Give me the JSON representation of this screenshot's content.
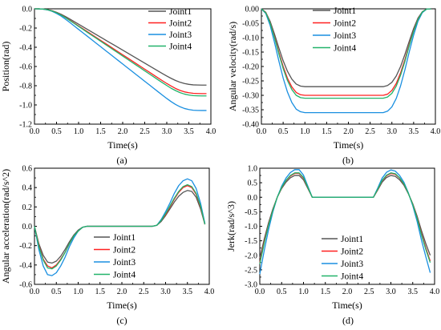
{
  "colors": {
    "Joint1": "#555555",
    "Joint2": "#ff2020",
    "Joint3": "#1a8fe0",
    "Joint4": "#22b36a"
  },
  "chart_data": [
    {
      "type": "line",
      "panel_label": "(a)",
      "xlabel": "Time(s)",
      "ylabel": "Position(rad)",
      "xlim": [
        0.0,
        4.0
      ],
      "ylim": [
        -1.2,
        0.0
      ],
      "xticks": [
        "0.0",
        "0.5",
        "1.0",
        "1.5",
        "2.0",
        "2.5",
        "3.0",
        "3.5",
        "4.0"
      ],
      "yticks": [
        "0.0",
        "-0.2",
        "-0.4",
        "-0.6",
        "-0.8",
        "-1.0",
        "-1.2"
      ],
      "legend_position": "top-right",
      "x": [
        0,
        0.1,
        0.2,
        0.3,
        0.4,
        0.5,
        0.6,
        0.7,
        0.8,
        0.9,
        1.0,
        1.1,
        1.2,
        1.3,
        1.4,
        1.5,
        1.6,
        1.7,
        1.8,
        1.9,
        2.0,
        2.1,
        2.2,
        2.3,
        2.4,
        2.5,
        2.6,
        2.7,
        2.8,
        2.9,
        3.0,
        3.1,
        3.2,
        3.3,
        3.4,
        3.5,
        3.6,
        3.7,
        3.8,
        3.9
      ],
      "series": [
        {
          "name": "Joint1",
          "values": [
            0.0,
            -0.0004,
            -0.0028,
            -0.009,
            -0.02,
            -0.036,
            -0.056,
            -0.08,
            -0.106,
            -0.133,
            -0.16,
            -0.187,
            -0.214,
            -0.241,
            -0.268,
            -0.295,
            -0.322,
            -0.349,
            -0.376,
            -0.403,
            -0.43,
            -0.457,
            -0.484,
            -0.511,
            -0.538,
            -0.565,
            -0.592,
            -0.619,
            -0.646,
            -0.673,
            -0.699,
            -0.724,
            -0.746,
            -0.764,
            -0.777,
            -0.786,
            -0.791,
            -0.793,
            -0.794,
            -0.794
          ]
        },
        {
          "name": "Joint2",
          "values": [
            0.0,
            -0.0004,
            -0.0031,
            -0.01,
            -0.022,
            -0.04,
            -0.062,
            -0.089,
            -0.118,
            -0.148,
            -0.178,
            -0.208,
            -0.238,
            -0.268,
            -0.298,
            -0.328,
            -0.358,
            -0.388,
            -0.418,
            -0.448,
            -0.478,
            -0.508,
            -0.538,
            -0.568,
            -0.598,
            -0.628,
            -0.658,
            -0.688,
            -0.718,
            -0.748,
            -0.777,
            -0.804,
            -0.829,
            -0.849,
            -0.864,
            -0.873,
            -0.879,
            -0.881,
            -0.882,
            -0.882
          ]
        },
        {
          "name": "Joint3",
          "values": [
            0.0,
            -0.0005,
            -0.0037,
            -0.012,
            -0.026,
            -0.048,
            -0.075,
            -0.107,
            -0.142,
            -0.178,
            -0.214,
            -0.25,
            -0.286,
            -0.322,
            -0.358,
            -0.394,
            -0.43,
            -0.466,
            -0.502,
            -0.538,
            -0.574,
            -0.61,
            -0.646,
            -0.682,
            -0.718,
            -0.754,
            -0.79,
            -0.826,
            -0.862,
            -0.898,
            -0.933,
            -0.966,
            -0.995,
            -1.019,
            -1.037,
            -1.048,
            -1.055,
            -1.057,
            -1.058,
            -1.058
          ]
        },
        {
          "name": "Joint4",
          "values": [
            0.0,
            -0.0004,
            -0.0031,
            -0.01,
            -0.023,
            -0.041,
            -0.064,
            -0.091,
            -0.121,
            -0.152,
            -0.183,
            -0.214,
            -0.245,
            -0.276,
            -0.306,
            -0.337,
            -0.368,
            -0.399,
            -0.43,
            -0.46,
            -0.491,
            -0.522,
            -0.553,
            -0.584,
            -0.614,
            -0.645,
            -0.676,
            -0.707,
            -0.738,
            -0.768,
            -0.798,
            -0.827,
            -0.851,
            -0.872,
            -0.887,
            -0.897,
            -0.903,
            -0.905,
            -0.906,
            -0.906
          ]
        }
      ]
    },
    {
      "type": "line",
      "panel_label": "(b)",
      "xlabel": "Time(s)",
      "ylabel": "Angular velocity(rad/s)",
      "xlim": [
        0.0,
        4.0
      ],
      "ylim": [
        -0.4,
        0.0
      ],
      "xticks": [
        "0.0",
        "0.5",
        "1.0",
        "1.5",
        "2.0",
        "2.5",
        "3.0",
        "3.5",
        "4.0"
      ],
      "yticks": [
        "0.00",
        "-0.05",
        "-0.10",
        "-0.15",
        "-0.20",
        "-0.25",
        "-0.30",
        "-0.35",
        "-0.40"
      ],
      "legend_position": "top-right",
      "x": [
        0,
        0.1,
        0.2,
        0.3,
        0.4,
        0.5,
        0.6,
        0.7,
        0.8,
        0.9,
        1.0,
        1.1,
        1.2,
        1.3,
        1.4,
        1.5,
        1.6,
        1.7,
        1.8,
        1.9,
        2.0,
        2.1,
        2.2,
        2.3,
        2.4,
        2.5,
        2.6,
        2.7,
        2.8,
        2.9,
        3.0,
        3.1,
        3.2,
        3.3,
        3.4,
        3.5,
        3.6,
        3.7,
        3.8,
        3.9
      ],
      "series": [
        {
          "name": "Joint1",
          "values": [
            0.0,
            -0.012,
            -0.043,
            -0.087,
            -0.135,
            -0.18,
            -0.217,
            -0.244,
            -0.261,
            -0.268,
            -0.27,
            -0.27,
            -0.27,
            -0.27,
            -0.27,
            -0.27,
            -0.27,
            -0.27,
            -0.27,
            -0.27,
            -0.27,
            -0.27,
            -0.27,
            -0.27,
            -0.27,
            -0.27,
            -0.27,
            -0.27,
            -0.27,
            -0.266,
            -0.255,
            -0.233,
            -0.2,
            -0.158,
            -0.112,
            -0.068,
            -0.032,
            -0.01,
            -0.001,
            0.0
          ]
        },
        {
          "name": "Joint2",
          "values": [
            0.0,
            -0.013,
            -0.048,
            -0.097,
            -0.15,
            -0.2,
            -0.241,
            -0.271,
            -0.29,
            -0.298,
            -0.3,
            -0.3,
            -0.3,
            -0.3,
            -0.3,
            -0.3,
            -0.3,
            -0.3,
            -0.3,
            -0.3,
            -0.3,
            -0.3,
            -0.3,
            -0.3,
            -0.3,
            -0.3,
            -0.3,
            -0.3,
            -0.3,
            -0.296,
            -0.283,
            -0.259,
            -0.222,
            -0.176,
            -0.124,
            -0.076,
            -0.036,
            -0.011,
            -0.001,
            0.0
          ]
        },
        {
          "name": "Joint3",
          "values": [
            0.0,
            -0.016,
            -0.057,
            -0.116,
            -0.18,
            -0.24,
            -0.289,
            -0.325,
            -0.348,
            -0.357,
            -0.36,
            -0.36,
            -0.36,
            -0.36,
            -0.36,
            -0.36,
            -0.36,
            -0.36,
            -0.36,
            -0.36,
            -0.36,
            -0.36,
            -0.36,
            -0.36,
            -0.36,
            -0.36,
            -0.36,
            -0.36,
            -0.36,
            -0.355,
            -0.34,
            -0.311,
            -0.267,
            -0.211,
            -0.149,
            -0.091,
            -0.043,
            -0.013,
            -0.001,
            0.0
          ]
        },
        {
          "name": "Joint4",
          "values": [
            0.0,
            -0.014,
            -0.049,
            -0.1,
            -0.155,
            -0.207,
            -0.249,
            -0.28,
            -0.3,
            -0.308,
            -0.31,
            -0.31,
            -0.31,
            -0.31,
            -0.31,
            -0.31,
            -0.31,
            -0.31,
            -0.31,
            -0.31,
            -0.31,
            -0.31,
            -0.31,
            -0.31,
            -0.31,
            -0.31,
            -0.31,
            -0.31,
            -0.31,
            -0.306,
            -0.293,
            -0.268,
            -0.23,
            -0.182,
            -0.128,
            -0.078,
            -0.037,
            -0.011,
            -0.001,
            0.0
          ]
        }
      ]
    },
    {
      "type": "line",
      "panel_label": "(c)",
      "xlabel": "Time(s)",
      "ylabel": "Angular acceleration(rad/s^2)",
      "xlim": [
        0.0,
        4.0
      ],
      "ylim": [
        -0.6,
        0.6
      ],
      "xticks": [
        "0.0",
        "0.5",
        "1.0",
        "1.5",
        "2.0",
        "2.5",
        "3.0",
        "3.5",
        "4.0"
      ],
      "yticks": [
        "0.6",
        "0.4",
        "0.2",
        "0.0",
        "-0.2",
        "-0.4",
        "-0.6"
      ],
      "legend_position": "bottom-right",
      "x": [
        0,
        0.1,
        0.2,
        0.3,
        0.4,
        0.5,
        0.6,
        0.7,
        0.8,
        0.9,
        1.0,
        1.1,
        1.2,
        1.3,
        1.4,
        1.5,
        1.6,
        1.7,
        1.8,
        1.9,
        2.0,
        2.1,
        2.2,
        2.3,
        2.4,
        2.5,
        2.6,
        2.7,
        2.8,
        2.9,
        3.0,
        3.1,
        3.2,
        3.3,
        3.4,
        3.5,
        3.6,
        3.7,
        3.8,
        3.9
      ],
      "series": [
        {
          "name": "Joint1",
          "values": [
            0.0,
            -0.18,
            -0.3,
            -0.37,
            -0.38,
            -0.36,
            -0.31,
            -0.24,
            -0.16,
            -0.09,
            -0.04,
            -0.01,
            0.0,
            0.0,
            0.0,
            0.0,
            0.0,
            0.0,
            0.0,
            0.0,
            0.0,
            0.0,
            0.0,
            0.0,
            0.0,
            0.0,
            0.0,
            0.0,
            0.01,
            0.05,
            0.11,
            0.18,
            0.25,
            0.31,
            0.35,
            0.37,
            0.36,
            0.3,
            0.18,
            0.02
          ]
        },
        {
          "name": "Joint2",
          "values": [
            0.0,
            -0.2,
            -0.34,
            -0.41,
            -0.43,
            -0.4,
            -0.34,
            -0.27,
            -0.18,
            -0.1,
            -0.05,
            -0.01,
            0.0,
            0.0,
            0.0,
            0.0,
            0.0,
            0.0,
            0.0,
            0.0,
            0.0,
            0.0,
            0.0,
            0.0,
            0.0,
            0.0,
            0.0,
            0.0,
            0.01,
            0.06,
            0.12,
            0.2,
            0.28,
            0.35,
            0.4,
            0.42,
            0.4,
            0.33,
            0.2,
            0.02
          ]
        },
        {
          "name": "Joint3",
          "values": [
            0.0,
            -0.24,
            -0.41,
            -0.5,
            -0.51,
            -0.48,
            -0.41,
            -0.32,
            -0.21,
            -0.12,
            -0.05,
            -0.01,
            0.0,
            0.0,
            0.0,
            0.0,
            0.0,
            0.0,
            0.0,
            0.0,
            0.0,
            0.0,
            0.0,
            0.0,
            0.0,
            0.0,
            0.0,
            0.0,
            0.01,
            0.07,
            0.15,
            0.24,
            0.34,
            0.42,
            0.47,
            0.49,
            0.47,
            0.39,
            0.24,
            0.03
          ]
        },
        {
          "name": "Joint4",
          "values": [
            0.0,
            -0.21,
            -0.35,
            -0.43,
            -0.44,
            -0.41,
            -0.35,
            -0.27,
            -0.18,
            -0.1,
            -0.05,
            -0.01,
            0.0,
            0.0,
            0.0,
            0.0,
            0.0,
            0.0,
            0.0,
            0.0,
            0.0,
            0.0,
            0.0,
            0.0,
            0.0,
            0.0,
            0.0,
            0.0,
            0.01,
            0.06,
            0.13,
            0.21,
            0.29,
            0.36,
            0.41,
            0.43,
            0.41,
            0.34,
            0.21,
            0.02
          ]
        }
      ]
    },
    {
      "type": "line",
      "panel_label": "(d)",
      "xlabel": "Time(s)",
      "ylabel": "Jerk(rad/s^3)",
      "xlim": [
        0.0,
        4.0
      ],
      "ylim": [
        -3.0,
        1.0
      ],
      "xticks": [
        "0.0",
        "0.5",
        "1.0",
        "1.5",
        "2.0",
        "2.5",
        "3.0",
        "3.5",
        "4.0"
      ],
      "yticks": [
        "1.0",
        "0.5",
        "0.0",
        "-0.5",
        "-1.0",
        "-1.5",
        "-2.0",
        "-2.5",
        "-3.0"
      ],
      "legend_position": "bottom-right",
      "x": [
        0,
        0.1,
        0.2,
        0.3,
        0.4,
        0.5,
        0.6,
        0.7,
        0.8,
        0.9,
        1.0,
        1.1,
        1.2,
        1.3,
        1.4,
        1.5,
        1.6,
        1.7,
        1.8,
        1.9,
        2.0,
        2.1,
        2.2,
        2.3,
        2.4,
        2.5,
        2.6,
        2.7,
        2.8,
        2.9,
        3.0,
        3.1,
        3.2,
        3.3,
        3.4,
        3.5,
        3.6,
        3.7,
        3.8,
        3.9
      ],
      "series": [
        {
          "name": "Joint1",
          "values": [
            -2.1,
            -1.45,
            -0.88,
            -0.4,
            0.0,
            0.3,
            0.52,
            0.67,
            0.75,
            0.75,
            0.6,
            0.3,
            0.0,
            0.0,
            0.0,
            0.0,
            0.0,
            0.0,
            0.0,
            0.0,
            0.0,
            0.0,
            0.0,
            0.0,
            0.0,
            0.0,
            0.0,
            0.25,
            0.52,
            0.68,
            0.75,
            0.72,
            0.6,
            0.41,
            0.12,
            -0.22,
            -0.65,
            -1.15,
            -1.6,
            -2.0
          ]
        },
        {
          "name": "Joint2",
          "values": [
            -2.25,
            -1.55,
            -0.95,
            -0.44,
            0.0,
            0.33,
            0.57,
            0.73,
            0.82,
            0.82,
            0.66,
            0.33,
            0.0,
            0.0,
            0.0,
            0.0,
            0.0,
            0.0,
            0.0,
            0.0,
            0.0,
            0.0,
            0.0,
            0.0,
            0.0,
            0.0,
            0.0,
            0.27,
            0.57,
            0.74,
            0.82,
            0.79,
            0.66,
            0.45,
            0.13,
            -0.24,
            -0.71,
            -1.26,
            -1.75,
            -2.2
          ]
        },
        {
          "name": "Joint3",
          "values": [
            -2.65,
            -1.85,
            -1.12,
            -0.5,
            0.0,
            0.38,
            0.66,
            0.85,
            0.95,
            0.95,
            0.76,
            0.38,
            0.0,
            0.0,
            0.0,
            0.0,
            0.0,
            0.0,
            0.0,
            0.0,
            0.0,
            0.0,
            0.0,
            0.0,
            0.0,
            0.0,
            0.0,
            0.32,
            0.66,
            0.86,
            0.94,
            0.9,
            0.75,
            0.51,
            0.15,
            -0.29,
            -0.83,
            -1.48,
            -2.05,
            -2.6
          ]
        },
        {
          "name": "Joint4",
          "values": [
            -2.3,
            -1.6,
            -0.97,
            -0.45,
            0.0,
            0.34,
            0.58,
            0.75,
            0.84,
            0.84,
            0.68,
            0.34,
            0.0,
            0.0,
            0.0,
            0.0,
            0.0,
            0.0,
            0.0,
            0.0,
            0.0,
            0.0,
            0.0,
            0.0,
            0.0,
            0.0,
            0.0,
            0.28,
            0.58,
            0.76,
            0.84,
            0.81,
            0.67,
            0.46,
            0.13,
            -0.25,
            -0.73,
            -1.3,
            -1.8,
            -2.25
          ]
        }
      ]
    }
  ]
}
